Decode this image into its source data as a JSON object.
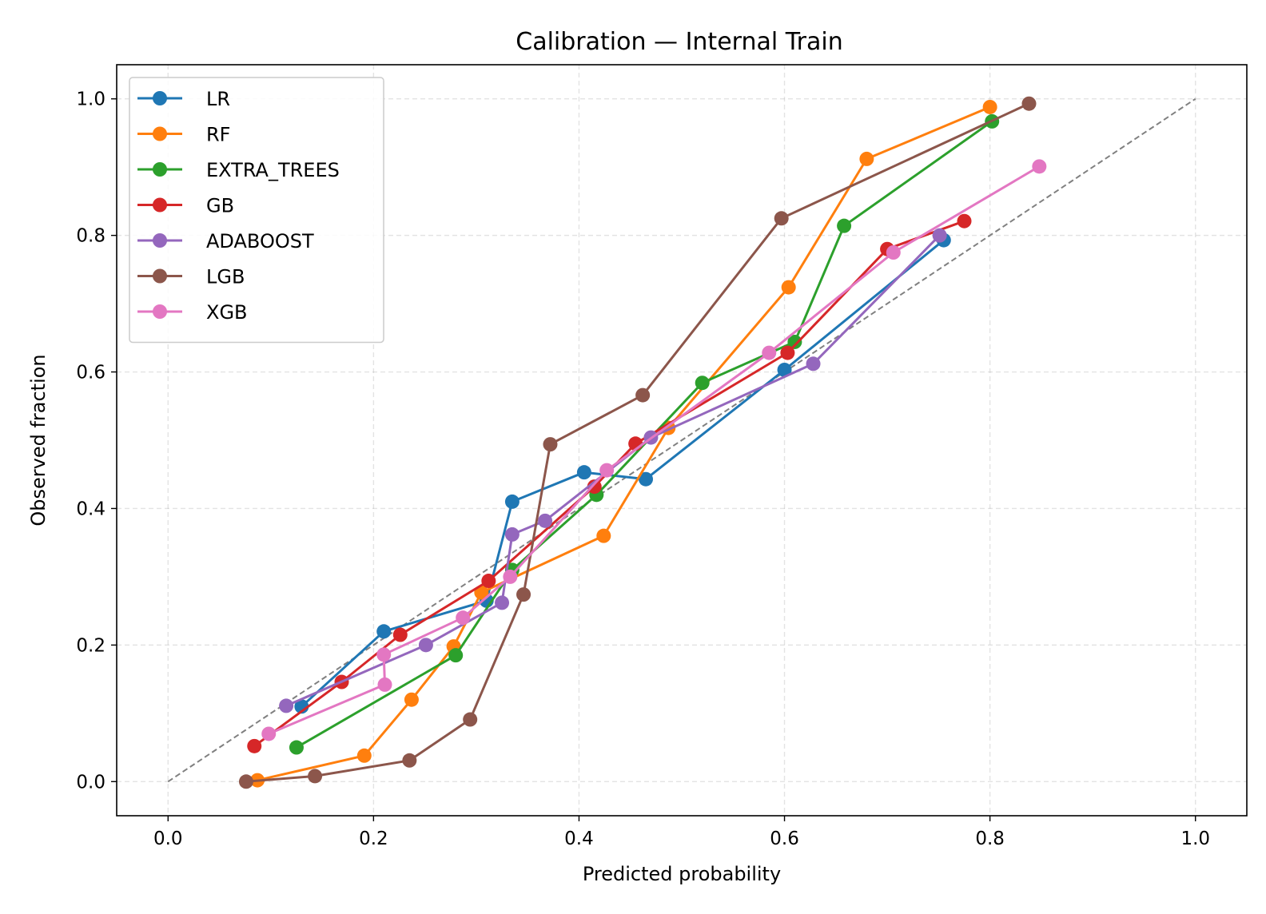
{
  "chart_data": {
    "type": "line",
    "title": "Calibration — Internal Train",
    "xlabel": "Predicted probability",
    "ylabel": "Observed fraction",
    "xlim": [
      -0.05,
      1.05
    ],
    "ylim": [
      -0.05,
      1.05
    ],
    "xticks": [
      0.0,
      0.2,
      0.4,
      0.6,
      0.8,
      1.0
    ],
    "yticks": [
      0.0,
      0.2,
      0.4,
      0.6,
      0.8,
      1.0
    ],
    "xtick_labels": [
      "0.0",
      "0.2",
      "0.4",
      "0.6",
      "0.8",
      "1.0"
    ],
    "ytick_labels": [
      "0.0",
      "0.2",
      "0.4",
      "0.6",
      "0.8",
      "1.0"
    ],
    "grid": true,
    "legend_position": "top-left",
    "reference_line": {
      "x": [
        0,
        1
      ],
      "y": [
        0,
        1
      ],
      "color": "#808080",
      "style": "dashed"
    },
    "series": [
      {
        "name": "LR",
        "color": "#1f77b4",
        "x": [
          0.13,
          0.21,
          0.31,
          0.335,
          0.405,
          0.465,
          0.6,
          0.755
        ],
        "y": [
          0.11,
          0.22,
          0.265,
          0.41,
          0.453,
          0.443,
          0.603,
          0.793
        ]
      },
      {
        "name": "RF",
        "color": "#ff7f0e",
        "x": [
          0.087,
          0.191,
          0.237,
          0.278,
          0.305,
          0.424,
          0.487,
          0.604,
          0.68,
          0.8
        ],
        "y": [
          0.002,
          0.038,
          0.12,
          0.198,
          0.277,
          0.36,
          0.518,
          0.724,
          0.912,
          0.988
        ]
      },
      {
        "name": "EXTRA_TREES",
        "color": "#2ca02c",
        "x": [
          0.125,
          0.28,
          0.335,
          0.417,
          0.52,
          0.61,
          0.658,
          0.802
        ],
        "y": [
          0.05,
          0.185,
          0.31,
          0.42,
          0.584,
          0.644,
          0.814,
          0.967
        ]
      },
      {
        "name": "GB",
        "color": "#d62728",
        "x": [
          0.084,
          0.169,
          0.226,
          0.312,
          0.415,
          0.455,
          0.603,
          0.7,
          0.775
        ],
        "y": [
          0.052,
          0.146,
          0.215,
          0.294,
          0.432,
          0.495,
          0.628,
          0.78,
          0.821
        ]
      },
      {
        "name": "ADABOOST",
        "color": "#9467bd",
        "x": [
          0.115,
          0.251,
          0.325,
          0.335,
          0.367,
          0.47,
          0.628,
          0.751
        ],
        "y": [
          0.111,
          0.2,
          0.262,
          0.362,
          0.382,
          0.504,
          0.612,
          0.8
        ]
      },
      {
        "name": "LGB",
        "color": "#8c564b",
        "x": [
          0.076,
          0.143,
          0.235,
          0.294,
          0.346,
          0.372,
          0.462,
          0.597,
          0.838
        ],
        "y": [
          0.0,
          0.008,
          0.031,
          0.091,
          0.274,
          0.494,
          0.566,
          0.825,
          0.993
        ]
      },
      {
        "name": "XGB",
        "color": "#e377c2",
        "x": [
          0.098,
          0.211,
          0.21,
          0.287,
          0.333,
          0.427,
          0.585,
          0.706,
          0.848
        ],
        "y": [
          0.07,
          0.142,
          0.186,
          0.24,
          0.3,
          0.456,
          0.628,
          0.775,
          0.901
        ]
      }
    ]
  }
}
